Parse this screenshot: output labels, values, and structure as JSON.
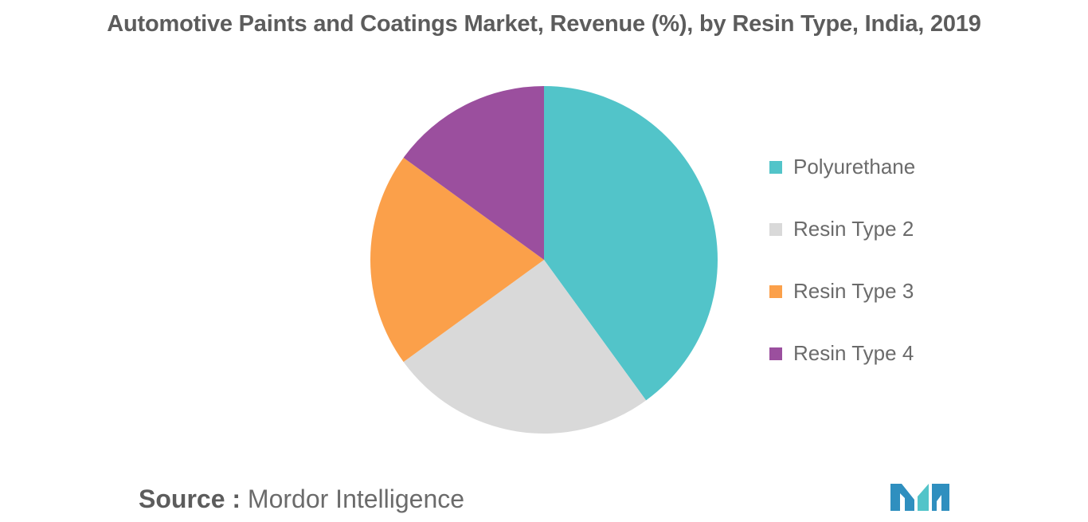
{
  "chart_data": {
    "type": "pie",
    "title": "Automotive Paints and Coatings Market, Revenue (%), by Resin Type, India, 2019",
    "categories": [
      "Polyurethane",
      "Resin Type 2",
      "Resin Type 3",
      "Resin Type 4"
    ],
    "values": [
      40,
      25,
      20,
      15
    ],
    "colors": [
      "#52c4c9",
      "#d9d9d9",
      "#fba04a",
      "#9b4f9e"
    ],
    "start_angle": "12 o'clock",
    "direction": "clockwise",
    "legend_position": "right"
  },
  "source": {
    "prefix": "Source :",
    "text": "Mordor Intelligence"
  },
  "logo": {
    "name": "mordor-intelligence-logo",
    "colors": [
      "#2f8fbf",
      "#52c4c9"
    ]
  }
}
